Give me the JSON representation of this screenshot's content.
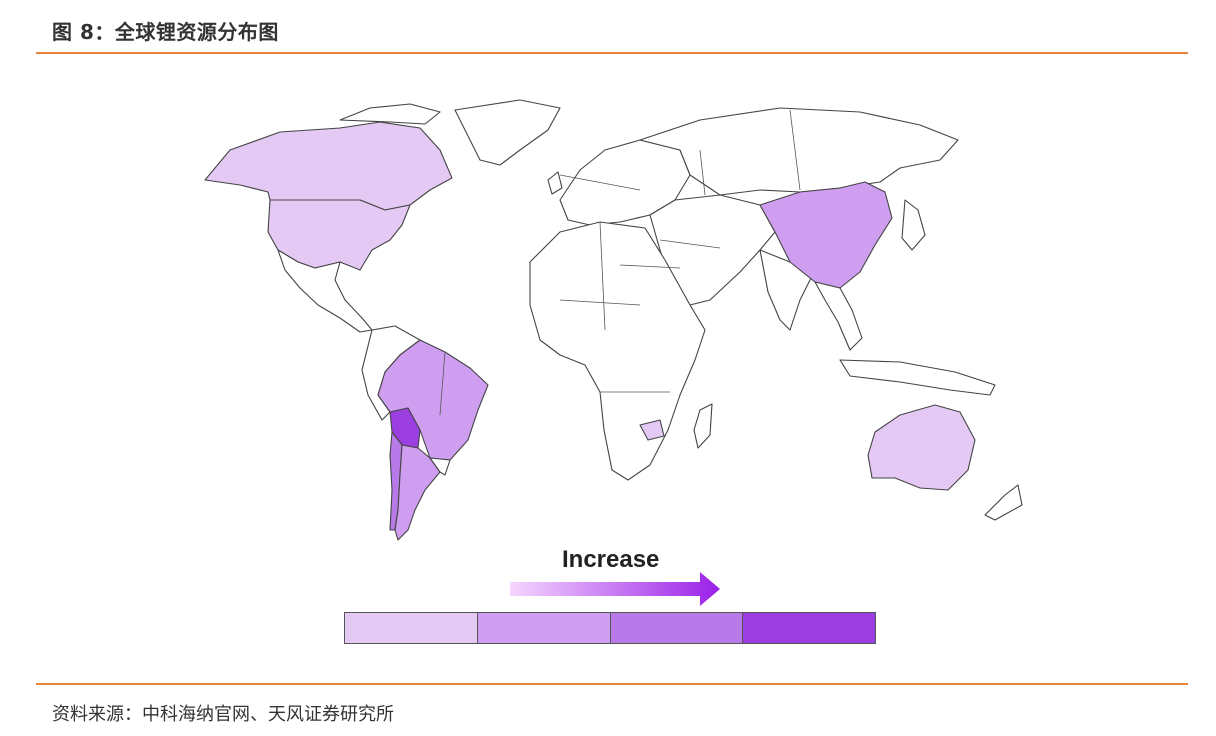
{
  "header": {
    "title": "图 8：全球锂资源分布图"
  },
  "legend": {
    "label": "Increase",
    "levels": [
      "#e4c9f5",
      "#cf9ef0",
      "#b87ae8",
      "#9b3fe0"
    ],
    "arrow_colors": [
      "#f5d6ff",
      "#9a20e8"
    ]
  },
  "map": {
    "regions": [
      {
        "name": "Canada",
        "level": 1
      },
      {
        "name": "USA",
        "level": 1
      },
      {
        "name": "Australia",
        "level": 1
      },
      {
        "name": "Zimbabwe",
        "level": 1
      },
      {
        "name": "China",
        "level": 2
      },
      {
        "name": "Brazil",
        "level": 2
      },
      {
        "name": "Argentina",
        "level": 2
      },
      {
        "name": "Chile",
        "level": 3
      },
      {
        "name": "Bolivia",
        "level": 4
      }
    ]
  },
  "footer": {
    "source": "资料来源：中科海纳官网、天风证券研究所"
  }
}
